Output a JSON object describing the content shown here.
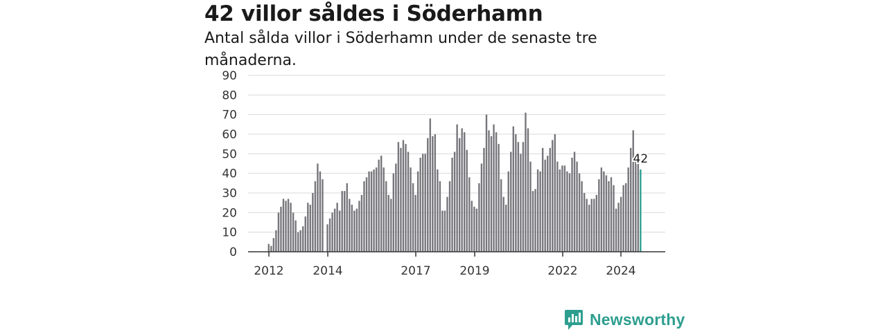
{
  "title": "42 villor såldes i Söderhamn",
  "subtitle": "Antal sålda villor i Söderhamn under de senaste tre månaderna.",
  "brand": "Newsworthy",
  "colors": {
    "bar": "#77767b",
    "highlight": "#2e9e8f",
    "grid": "#d9d9d9",
    "axis": "#333333",
    "brand": "#2e9e8f"
  },
  "chart_data": {
    "type": "bar",
    "title": "42 villor såldes i Söderhamn",
    "subtitle": "Antal sålda villor i Söderhamn under de senaste tre månaderna.",
    "ylim": [
      0,
      90
    ],
    "yticks": [
      0,
      10,
      20,
      30,
      40,
      50,
      60,
      70,
      80,
      90
    ],
    "xticks": [
      "2012",
      "2014",
      "2017",
      "2019",
      "2022",
      "2024"
    ],
    "grid": true,
    "highlight_label": "42",
    "values": [
      4,
      3,
      7,
      11,
      20,
      23,
      27,
      26,
      27,
      25,
      20,
      16,
      10,
      11,
      13,
      18,
      25,
      24,
      30,
      36,
      45,
      41,
      37,
      0,
      14,
      17,
      20,
      22,
      25,
      21,
      31,
      31,
      35,
      27,
      24,
      21,
      22,
      26,
      29,
      36,
      38,
      41,
      41,
      42,
      43,
      47,
      49,
      43,
      36,
      29,
      27,
      40,
      45,
      56,
      53,
      57,
      55,
      51,
      43,
      35,
      29,
      41,
      48,
      50,
      50,
      58,
      68,
      59,
      60,
      42,
      36,
      21,
      21,
      28,
      36,
      48,
      51,
      65,
      58,
      63,
      61,
      52,
      38,
      26,
      23,
      22,
      35,
      45,
      53,
      70,
      62,
      59,
      65,
      61,
      55,
      37,
      28,
      24,
      41,
      51,
      64,
      60,
      56,
      50,
      56,
      71,
      63,
      46,
      31,
      32,
      42,
      41,
      53,
      47,
      49,
      53,
      57,
      60,
      46,
      42,
      44,
      44,
      41,
      40,
      48,
      51,
      46,
      40,
      36,
      30,
      27,
      24,
      27,
      27,
      29,
      37,
      43,
      41,
      39,
      36,
      38,
      34,
      22,
      25,
      28,
      34,
      35,
      43,
      53,
      62,
      46,
      45,
      42
    ]
  }
}
